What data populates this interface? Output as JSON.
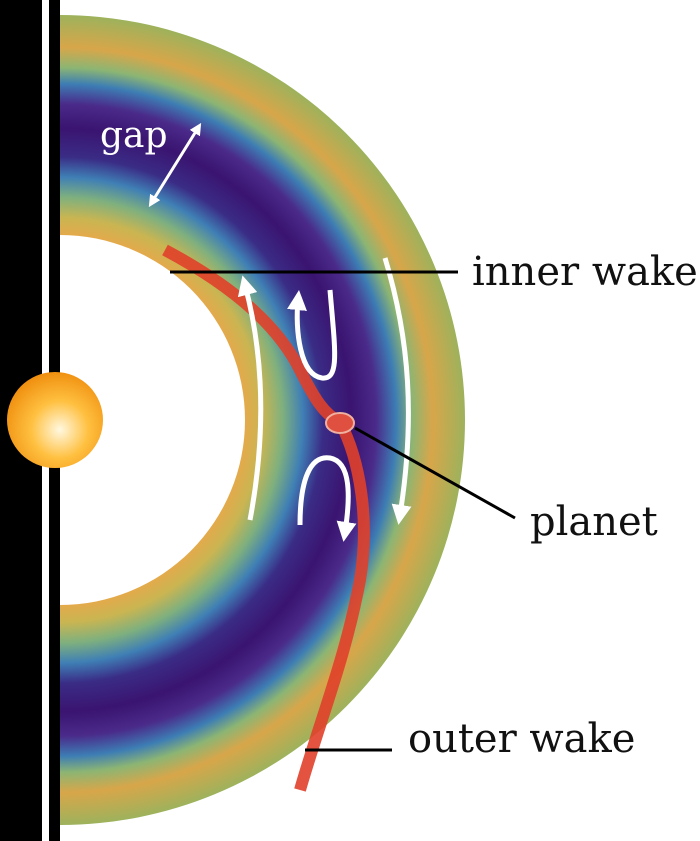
{
  "annotations": [
    {
      "label": "gap"
    },
    {
      "label": "inner wake"
    },
    {
      "label": "planet"
    },
    {
      "label": "outer wake"
    }
  ]
}
